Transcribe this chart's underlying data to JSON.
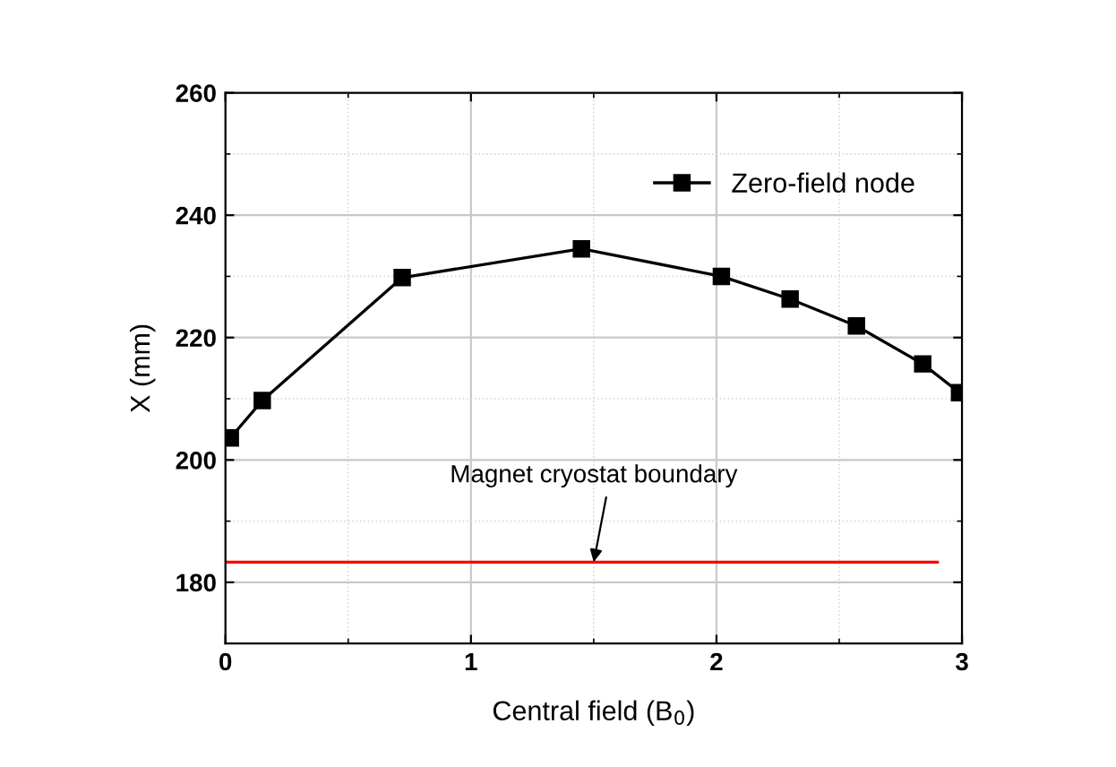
{
  "chart_data": {
    "type": "line",
    "xlabel": "Central field (B$_{0}$)",
    "ylabel": "X (mm)",
    "xlim": [
      0,
      3
    ],
    "xticks": [
      0,
      1,
      2,
      3
    ],
    "ylim": [
      170,
      260
    ],
    "yticks": [
      180,
      200,
      220,
      240,
      260
    ],
    "grid": true,
    "legend": "top right",
    "series": [
      {
        "name": "Zero-field node",
        "color": "#000000",
        "marker": "square",
        "line_style": "solid",
        "x": [
          0.02,
          0.15,
          0.72,
          1.45,
          2.02,
          2.3,
          2.57,
          2.84,
          2.99
        ],
        "values": [
          203.6,
          209.7,
          229.8,
          234.5,
          230.0,
          226.3,
          221.9,
          215.7,
          211.0
        ]
      },
      {
        "color": "#ff0000",
        "marker": "none",
        "line_style": "solid",
        "x": [
          0,
          2.9
        ],
        "values": [
          183.3,
          183.3
        ]
      }
    ],
    "annotations": [
      {
        "text": "Magnet cryostat boundary",
        "x": 1.5,
        "y": 183.3
      }
    ]
  }
}
